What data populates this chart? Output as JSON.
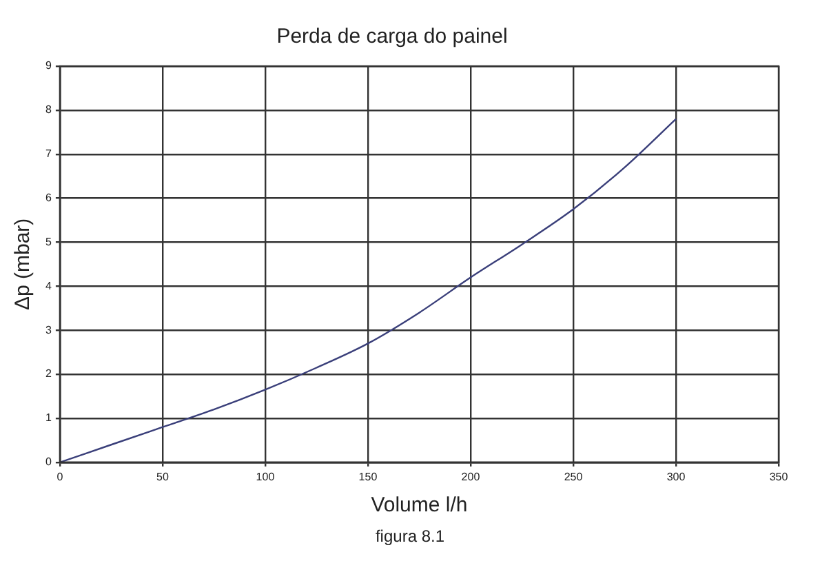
{
  "chart_data": {
    "type": "line",
    "title": "Perda de carga do painel",
    "xlabel": "Volume l/h",
    "ylabel": "Δp (mbar)",
    "annotations": [
      "figura 8.1"
    ],
    "x": [
      0,
      25,
      50,
      75,
      100,
      125,
      150,
      175,
      200,
      225,
      250,
      275,
      300
    ],
    "series": [
      {
        "color": "#3a3f7a",
        "values": [
          0,
          0.4,
          0.8,
          1.2,
          1.65,
          2.15,
          2.7,
          3.4,
          4.2,
          4.95,
          5.75,
          6.7,
          7.8
        ]
      }
    ],
    "xlim": [
      0,
      350
    ],
    "xticks": [
      0,
      50,
      100,
      150,
      200,
      250,
      300,
      350
    ],
    "ylim": [
      0,
      9
    ],
    "yticks": [
      0,
      1,
      2,
      3,
      4,
      5,
      6,
      7,
      8,
      9
    ],
    "grid": true,
    "legend": false,
    "marker": "none",
    "line_style": "solid"
  }
}
